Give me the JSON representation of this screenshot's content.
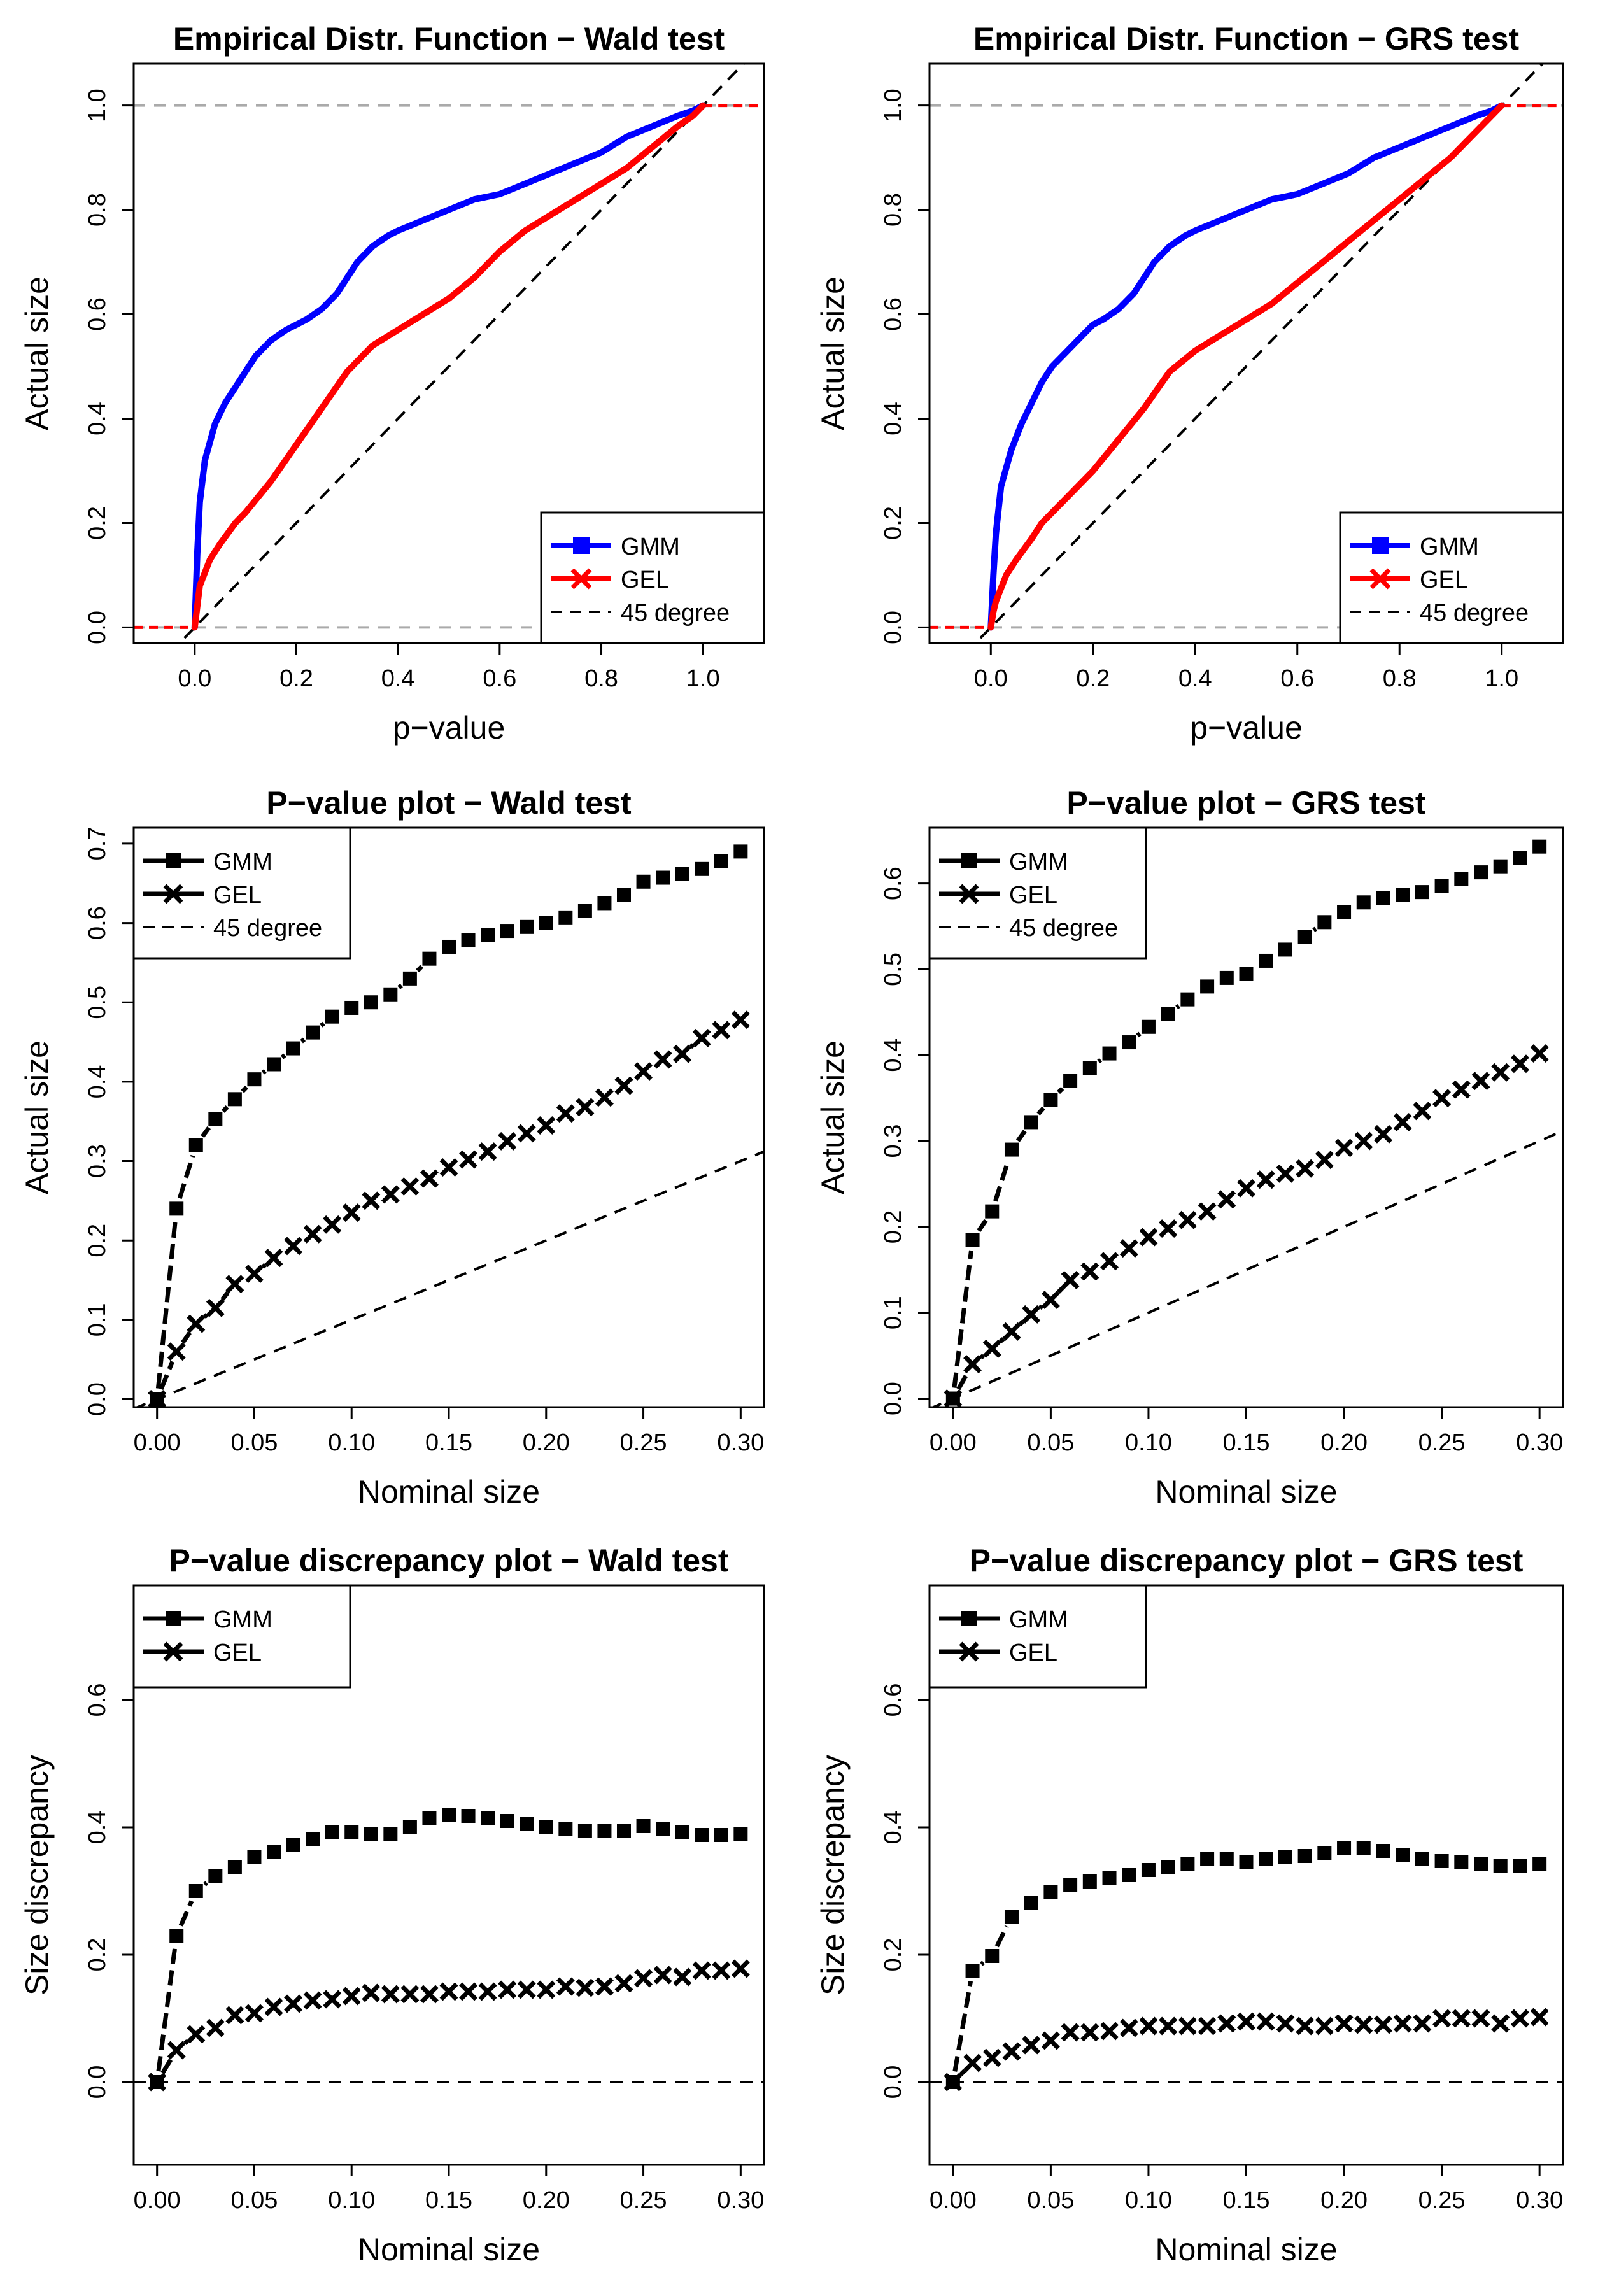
{
  "figure": {
    "colors": {
      "gmm_cdf": "#0000ff",
      "gel_cdf": "#ff0000",
      "ink": "#000000",
      "ref_gray": "#aaaaaa"
    }
  },
  "chart_data": [
    {
      "id": "cdf_wald",
      "type": "line",
      "title": "Empirical Distr. Function − Wald test",
      "xlabel": "p−value",
      "ylabel": "Actual size",
      "xlim": [
        -0.12,
        1.12
      ],
      "ylim": [
        -0.03,
        1.08
      ],
      "xticks": [
        "0.0",
        "0.2",
        "0.4",
        "0.6",
        "0.8",
        "1.0"
      ],
      "yticks": [
        "0.0",
        "0.2",
        "0.4",
        "0.6",
        "0.8",
        "1.0"
      ],
      "hlines": [
        0,
        1
      ],
      "legend_position": "bottom-right",
      "legend": [
        {
          "label": "GMM",
          "style": "line-square",
          "color": "#0000ff"
        },
        {
          "label": "GEL",
          "style": "line-x",
          "color": "#ff0000"
        },
        {
          "label": "45 degree",
          "style": "dash",
          "color": "#000000"
        }
      ],
      "series": [
        {
          "name": "GMM",
          "color": "#0000ff",
          "x": [
            0,
            0.005,
            0.01,
            0.02,
            0.04,
            0.06,
            0.08,
            0.1,
            0.12,
            0.15,
            0.18,
            0.2,
            0.22,
            0.25,
            0.28,
            0.3,
            0.32,
            0.35,
            0.38,
            0.4,
            0.45,
            0.5,
            0.55,
            0.6,
            0.65,
            0.7,
            0.75,
            0.8,
            0.85,
            0.9,
            0.95,
            0.98,
            1.0
          ],
          "y": [
            0,
            0.14,
            0.24,
            0.32,
            0.39,
            0.43,
            0.46,
            0.49,
            0.52,
            0.55,
            0.57,
            0.58,
            0.59,
            0.61,
            0.64,
            0.67,
            0.7,
            0.73,
            0.75,
            0.76,
            0.78,
            0.8,
            0.82,
            0.83,
            0.85,
            0.87,
            0.89,
            0.91,
            0.94,
            0.96,
            0.98,
            0.99,
            1.0
          ]
        },
        {
          "name": "GEL",
          "color": "#ff0000",
          "x": [
            0,
            0.005,
            0.01,
            0.03,
            0.05,
            0.08,
            0.1,
            0.15,
            0.2,
            0.25,
            0.3,
            0.35,
            0.4,
            0.45,
            0.5,
            0.55,
            0.6,
            0.65,
            0.7,
            0.75,
            0.8,
            0.85,
            0.9,
            0.95,
            0.98,
            1.0
          ],
          "y": [
            0,
            0.04,
            0.08,
            0.13,
            0.16,
            0.2,
            0.22,
            0.28,
            0.35,
            0.42,
            0.49,
            0.54,
            0.57,
            0.6,
            0.63,
            0.67,
            0.72,
            0.76,
            0.79,
            0.82,
            0.85,
            0.88,
            0.92,
            0.96,
            0.98,
            1.0
          ]
        }
      ]
    },
    {
      "id": "cdf_grs",
      "type": "line",
      "title": "Empirical Distr. Function − GRS test",
      "xlabel": "p−value",
      "ylabel": "Actual size",
      "xlim": [
        -0.12,
        1.12
      ],
      "ylim": [
        -0.03,
        1.08
      ],
      "xticks": [
        "0.0",
        "0.2",
        "0.4",
        "0.6",
        "0.8",
        "1.0"
      ],
      "yticks": [
        "0.0",
        "0.2",
        "0.4",
        "0.6",
        "0.8",
        "1.0"
      ],
      "hlines": [
        0,
        1
      ],
      "legend_position": "bottom-right",
      "legend": [
        {
          "label": "GMM",
          "style": "line-square",
          "color": "#0000ff"
        },
        {
          "label": "GEL",
          "style": "line-x",
          "color": "#ff0000"
        },
        {
          "label": "45 degree",
          "style": "dash",
          "color": "#000000"
        }
      ],
      "series": [
        {
          "name": "GMM",
          "color": "#0000ff",
          "x": [
            0,
            0.005,
            0.01,
            0.02,
            0.04,
            0.06,
            0.08,
            0.1,
            0.12,
            0.15,
            0.18,
            0.2,
            0.22,
            0.25,
            0.28,
            0.3,
            0.32,
            0.35,
            0.38,
            0.4,
            0.45,
            0.5,
            0.55,
            0.6,
            0.65,
            0.7,
            0.75,
            0.8,
            0.85,
            0.9,
            0.95,
            0.98,
            1.0
          ],
          "y": [
            0,
            0.1,
            0.18,
            0.27,
            0.34,
            0.39,
            0.43,
            0.47,
            0.5,
            0.53,
            0.56,
            0.58,
            0.59,
            0.61,
            0.64,
            0.67,
            0.7,
            0.73,
            0.75,
            0.76,
            0.78,
            0.8,
            0.82,
            0.83,
            0.85,
            0.87,
            0.9,
            0.92,
            0.94,
            0.96,
            0.98,
            0.99,
            1.0
          ]
        },
        {
          "name": "GEL",
          "color": "#ff0000",
          "x": [
            0,
            0.005,
            0.01,
            0.03,
            0.05,
            0.08,
            0.1,
            0.15,
            0.2,
            0.25,
            0.3,
            0.35,
            0.4,
            0.45,
            0.5,
            0.55,
            0.6,
            0.65,
            0.7,
            0.75,
            0.8,
            0.85,
            0.9,
            0.95,
            0.98,
            1.0
          ],
          "y": [
            0,
            0.03,
            0.05,
            0.1,
            0.13,
            0.17,
            0.2,
            0.25,
            0.3,
            0.36,
            0.42,
            0.49,
            0.53,
            0.56,
            0.59,
            0.62,
            0.66,
            0.7,
            0.74,
            0.78,
            0.82,
            0.86,
            0.9,
            0.95,
            0.98,
            1.0
          ]
        }
      ]
    },
    {
      "id": "pv_wald",
      "type": "line",
      "title": "P−value plot − Wald test",
      "xlabel": "Nominal size",
      "ylabel": "Actual size",
      "xlim": [
        -0.012,
        0.312
      ],
      "ylim": [
        -0.01,
        0.72
      ],
      "xticks": [
        "0.00",
        "0.05",
        "0.10",
        "0.15",
        "0.20",
        "0.25",
        "0.30"
      ],
      "yticks": [
        "0.0",
        "0.1",
        "0.2",
        "0.3",
        "0.4",
        "0.5",
        "0.6",
        "0.7"
      ],
      "legend_position": "top-left",
      "legend": [
        {
          "label": "GMM",
          "style": "line-square",
          "color": "#000000"
        },
        {
          "label": "GEL",
          "style": "line-x",
          "color": "#000000"
        },
        {
          "label": "45 degree",
          "style": "dash",
          "color": "#000000"
        }
      ],
      "x": [
        0,
        0.01,
        0.02,
        0.03,
        0.04,
        0.05,
        0.06,
        0.07,
        0.08,
        0.09,
        0.1,
        0.11,
        0.12,
        0.13,
        0.14,
        0.15,
        0.16,
        0.17,
        0.18,
        0.19,
        0.2,
        0.21,
        0.22,
        0.23,
        0.24,
        0.25,
        0.26,
        0.27,
        0.28,
        0.29,
        0.3
      ],
      "series": [
        {
          "name": "GMM",
          "marker": "square",
          "values": [
            0,
            0.24,
            0.32,
            0.353,
            0.378,
            0.403,
            0.422,
            0.442,
            0.462,
            0.482,
            0.493,
            0.5,
            0.51,
            0.53,
            0.555,
            0.57,
            0.578,
            0.585,
            0.59,
            0.595,
            0.6,
            0.607,
            0.615,
            0.625,
            0.635,
            0.652,
            0.657,
            0.662,
            0.668,
            0.678,
            0.69
          ]
        },
        {
          "name": "GEL",
          "marker": "x",
          "values": [
            0,
            0.06,
            0.095,
            0.115,
            0.145,
            0.158,
            0.178,
            0.193,
            0.208,
            0.22,
            0.235,
            0.25,
            0.258,
            0.268,
            0.278,
            0.292,
            0.302,
            0.312,
            0.325,
            0.335,
            0.345,
            0.36,
            0.368,
            0.38,
            0.395,
            0.413,
            0.428,
            0.435,
            0.455,
            0.465,
            0.478
          ]
        }
      ],
      "reference_line": "45 degree"
    },
    {
      "id": "pv_grs",
      "type": "line",
      "title": "P−value plot − GRS test",
      "xlabel": "Nominal size",
      "ylabel": "Actual size",
      "xlim": [
        -0.012,
        0.312
      ],
      "ylim": [
        -0.01,
        0.665
      ],
      "xticks": [
        "0.00",
        "0.05",
        "0.10",
        "0.15",
        "0.20",
        "0.25",
        "0.30"
      ],
      "yticks": [
        "0.0",
        "0.1",
        "0.2",
        "0.3",
        "0.4",
        "0.5",
        "0.6"
      ],
      "legend_position": "top-left",
      "legend": [
        {
          "label": "GMM",
          "style": "line-square",
          "color": "#000000"
        },
        {
          "label": "GEL",
          "style": "line-x",
          "color": "#000000"
        },
        {
          "label": "45 degree",
          "style": "dash",
          "color": "#000000"
        }
      ],
      "x": [
        0,
        0.01,
        0.02,
        0.03,
        0.04,
        0.05,
        0.06,
        0.07,
        0.08,
        0.09,
        0.1,
        0.11,
        0.12,
        0.13,
        0.14,
        0.15,
        0.16,
        0.17,
        0.18,
        0.19,
        0.2,
        0.21,
        0.22,
        0.23,
        0.24,
        0.25,
        0.26,
        0.27,
        0.28,
        0.29,
        0.3
      ],
      "series": [
        {
          "name": "GMM",
          "marker": "square",
          "values": [
            0,
            0.185,
            0.218,
            0.29,
            0.322,
            0.348,
            0.37,
            0.385,
            0.402,
            0.415,
            0.433,
            0.448,
            0.465,
            0.48,
            0.49,
            0.495,
            0.51,
            0.523,
            0.538,
            0.555,
            0.567,
            0.578,
            0.583,
            0.587,
            0.59,
            0.597,
            0.605,
            0.613,
            0.62,
            0.63,
            0.643
          ]
        },
        {
          "name": "GEL",
          "marker": "x",
          "values": [
            0,
            0.04,
            0.058,
            0.078,
            0.098,
            0.115,
            0.138,
            0.148,
            0.16,
            0.175,
            0.188,
            0.198,
            0.208,
            0.218,
            0.232,
            0.245,
            0.255,
            0.262,
            0.268,
            0.278,
            0.292,
            0.3,
            0.308,
            0.322,
            0.335,
            0.35,
            0.36,
            0.37,
            0.38,
            0.39,
            0.402
          ]
        }
      ],
      "reference_line": "45 degree"
    },
    {
      "id": "disc_wald",
      "type": "line",
      "title": "P−value discrepancy plot − Wald test",
      "xlabel": "Nominal size",
      "ylabel": "Size discrepancy",
      "xlim": [
        -0.012,
        0.312
      ],
      "ylim": [
        -0.13,
        0.78
      ],
      "xticks": [
        "0.00",
        "0.05",
        "0.10",
        "0.15",
        "0.20",
        "0.25",
        "0.30"
      ],
      "yticks": [
        "0.0",
        "0.2",
        "0.4",
        "0.6"
      ],
      "legend_position": "top-left",
      "legend": [
        {
          "label": "GMM",
          "style": "line-square",
          "color": "#000000"
        },
        {
          "label": "GEL",
          "style": "line-x",
          "color": "#000000"
        }
      ],
      "x": [
        0,
        0.01,
        0.02,
        0.03,
        0.04,
        0.05,
        0.06,
        0.07,
        0.08,
        0.09,
        0.1,
        0.11,
        0.12,
        0.13,
        0.14,
        0.15,
        0.16,
        0.17,
        0.18,
        0.19,
        0.2,
        0.21,
        0.22,
        0.23,
        0.24,
        0.25,
        0.26,
        0.27,
        0.28,
        0.29,
        0.3
      ],
      "series": [
        {
          "name": "GMM",
          "marker": "square",
          "values": [
            0,
            0.23,
            0.3,
            0.323,
            0.338,
            0.353,
            0.362,
            0.372,
            0.382,
            0.392,
            0.393,
            0.39,
            0.39,
            0.4,
            0.415,
            0.42,
            0.418,
            0.415,
            0.41,
            0.405,
            0.4,
            0.397,
            0.395,
            0.395,
            0.395,
            0.402,
            0.397,
            0.392,
            0.388,
            0.388,
            0.39
          ]
        },
        {
          "name": "GEL",
          "marker": "x",
          "values": [
            0,
            0.05,
            0.075,
            0.085,
            0.105,
            0.108,
            0.118,
            0.123,
            0.128,
            0.13,
            0.135,
            0.14,
            0.138,
            0.138,
            0.138,
            0.142,
            0.142,
            0.142,
            0.145,
            0.145,
            0.145,
            0.15,
            0.148,
            0.15,
            0.155,
            0.163,
            0.168,
            0.165,
            0.175,
            0.175,
            0.178
          ]
        }
      ],
      "reference_line": "zero"
    },
    {
      "id": "disc_grs",
      "type": "line",
      "title": "P−value discrepancy plot − GRS test",
      "xlabel": "Nominal size",
      "ylabel": "Size discrepancy",
      "xlim": [
        -0.012,
        0.312
      ],
      "ylim": [
        -0.13,
        0.78
      ],
      "xticks": [
        "0.00",
        "0.05",
        "0.10",
        "0.15",
        "0.20",
        "0.25",
        "0.30"
      ],
      "yticks": [
        "0.0",
        "0.2",
        "0.4",
        "0.6"
      ],
      "legend_position": "top-left",
      "legend": [
        {
          "label": "GMM",
          "style": "line-square",
          "color": "#000000"
        },
        {
          "label": "GEL",
          "style": "line-x",
          "color": "#000000"
        }
      ],
      "x": [
        0,
        0.01,
        0.02,
        0.03,
        0.04,
        0.05,
        0.06,
        0.07,
        0.08,
        0.09,
        0.1,
        0.11,
        0.12,
        0.13,
        0.14,
        0.15,
        0.16,
        0.17,
        0.18,
        0.19,
        0.2,
        0.21,
        0.22,
        0.23,
        0.24,
        0.25,
        0.26,
        0.27,
        0.28,
        0.29,
        0.3
      ],
      "series": [
        {
          "name": "GMM",
          "marker": "square",
          "values": [
            0,
            0.175,
            0.198,
            0.26,
            0.282,
            0.298,
            0.31,
            0.315,
            0.32,
            0.325,
            0.333,
            0.338,
            0.343,
            0.35,
            0.35,
            0.345,
            0.35,
            0.353,
            0.355,
            0.36,
            0.367,
            0.368,
            0.363,
            0.357,
            0.35,
            0.347,
            0.345,
            0.343,
            0.34,
            0.34,
            0.343
          ]
        },
        {
          "name": "GEL",
          "marker": "x",
          "values": [
            0,
            0.03,
            0.038,
            0.048,
            0.058,
            0.065,
            0.078,
            0.078,
            0.08,
            0.085,
            0.088,
            0.088,
            0.088,
            0.088,
            0.092,
            0.095,
            0.095,
            0.092,
            0.088,
            0.088,
            0.092,
            0.09,
            0.09,
            0.092,
            0.092,
            0.1,
            0.1,
            0.1,
            0.092,
            0.1,
            0.102
          ]
        }
      ],
      "reference_line": "zero"
    }
  ]
}
